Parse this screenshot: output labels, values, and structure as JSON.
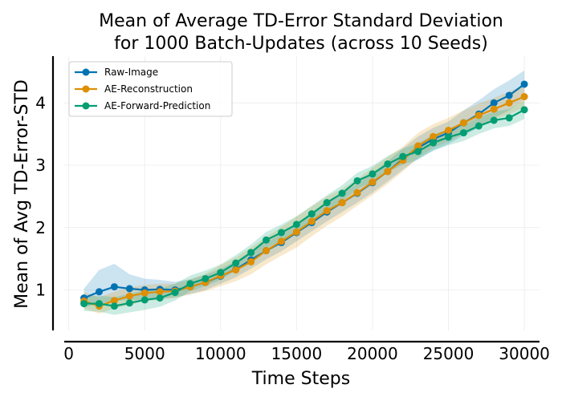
{
  "chart_data": {
    "type": "line",
    "title_lines": [
      "Mean of Average TD-Error Standard Deviation",
      "for 1000 Batch-Updates (across 10 Seeds)"
    ],
    "xlabel": "Time Steps",
    "ylabel": "Mean of Avg TD-Error-STD",
    "xlim": [
      -300,
      31000
    ],
    "ylim": [
      0.35,
      4.75
    ],
    "xticks": [
      0,
      5000,
      10000,
      15000,
      20000,
      25000,
      30000
    ],
    "yticks": [
      1,
      2,
      3,
      4
    ],
    "grid": true,
    "legend_position": "top-left",
    "x": [
      1000,
      2000,
      3000,
      4000,
      5000,
      6000,
      7000,
      8000,
      9000,
      10000,
      11000,
      12000,
      13000,
      14000,
      15000,
      16000,
      17000,
      18000,
      19000,
      20000,
      21000,
      22000,
      23000,
      24000,
      25000,
      26000,
      27000,
      28000,
      29000,
      30000
    ],
    "series": [
      {
        "name": "Raw-Image",
        "color": "#0173b2",
        "values": [
          0.87,
          0.97,
          1.05,
          1.02,
          1.0,
          1.01,
          1.0,
          1.05,
          1.12,
          1.22,
          1.33,
          1.48,
          1.63,
          1.76,
          1.92,
          2.08,
          2.25,
          2.4,
          2.55,
          2.72,
          2.9,
          3.1,
          3.28,
          3.42,
          3.52,
          3.68,
          3.82,
          4.0,
          4.12,
          4.3
        ],
        "lower": [
          0.72,
          0.78,
          0.82,
          0.84,
          0.84,
          0.86,
          0.88,
          0.93,
          1.0,
          1.1,
          1.2,
          1.34,
          1.49,
          1.62,
          1.78,
          1.94,
          2.1,
          2.25,
          2.4,
          2.56,
          2.74,
          2.93,
          3.1,
          3.24,
          3.34,
          3.48,
          3.6,
          3.76,
          3.88,
          4.05
        ],
        "upper": [
          1.02,
          1.32,
          1.42,
          1.25,
          1.18,
          1.16,
          1.13,
          1.17,
          1.24,
          1.34,
          1.46,
          1.62,
          1.77,
          1.9,
          2.06,
          2.22,
          2.4,
          2.55,
          2.7,
          2.88,
          3.06,
          3.27,
          3.46,
          3.6,
          3.7,
          3.88,
          4.04,
          4.22,
          4.36,
          4.52
        ]
      },
      {
        "name": "AE-Reconstruction",
        "color": "#de8f05",
        "values": [
          0.82,
          0.74,
          0.83,
          0.9,
          0.95,
          0.97,
          0.98,
          1.05,
          1.12,
          1.23,
          1.32,
          1.45,
          1.63,
          1.78,
          1.93,
          2.1,
          2.27,
          2.4,
          2.56,
          2.73,
          2.9,
          3.08,
          3.31,
          3.46,
          3.56,
          3.68,
          3.8,
          3.9,
          4.0,
          4.1
        ],
        "lower": [
          0.7,
          0.62,
          0.7,
          0.76,
          0.82,
          0.84,
          0.87,
          0.93,
          0.98,
          1.06,
          1.14,
          1.25,
          1.41,
          1.55,
          1.68,
          1.86,
          2.03,
          2.18,
          2.35,
          2.52,
          2.7,
          2.9,
          3.12,
          3.28,
          3.38,
          3.5,
          3.62,
          3.73,
          3.82,
          3.92
        ],
        "upper": [
          0.96,
          0.88,
          0.97,
          1.04,
          1.08,
          1.1,
          1.1,
          1.17,
          1.26,
          1.4,
          1.52,
          1.68,
          1.85,
          2.01,
          2.18,
          2.34,
          2.5,
          2.62,
          2.78,
          2.96,
          3.13,
          3.3,
          3.52,
          3.66,
          3.76,
          3.88,
          3.99,
          4.08,
          4.18,
          4.28
        ]
      },
      {
        "name": "AE-Forward-Prediction",
        "color": "#029e73",
        "values": [
          0.78,
          0.78,
          0.74,
          0.79,
          0.84,
          0.87,
          0.96,
          1.1,
          1.18,
          1.28,
          1.43,
          1.6,
          1.8,
          1.92,
          2.05,
          2.22,
          2.4,
          2.55,
          2.75,
          2.86,
          3.02,
          3.14,
          3.22,
          3.36,
          3.45,
          3.52,
          3.63,
          3.72,
          3.76,
          3.89
        ],
        "lower": [
          0.66,
          0.65,
          0.6,
          0.64,
          0.68,
          0.73,
          0.83,
          0.98,
          1.06,
          1.16,
          1.31,
          1.48,
          1.67,
          1.79,
          1.93,
          2.1,
          2.28,
          2.42,
          2.62,
          2.73,
          2.89,
          3.01,
          3.09,
          3.23,
          3.32,
          3.39,
          3.5,
          3.59,
          3.63,
          3.74
        ],
        "upper": [
          0.9,
          0.91,
          0.88,
          0.94,
          1.0,
          1.02,
          1.1,
          1.23,
          1.31,
          1.41,
          1.56,
          1.73,
          1.93,
          2.05,
          2.18,
          2.35,
          2.52,
          2.68,
          2.88,
          2.99,
          3.15,
          3.27,
          3.35,
          3.49,
          3.58,
          3.65,
          3.77,
          3.86,
          3.9,
          4.04
        ]
      }
    ]
  }
}
